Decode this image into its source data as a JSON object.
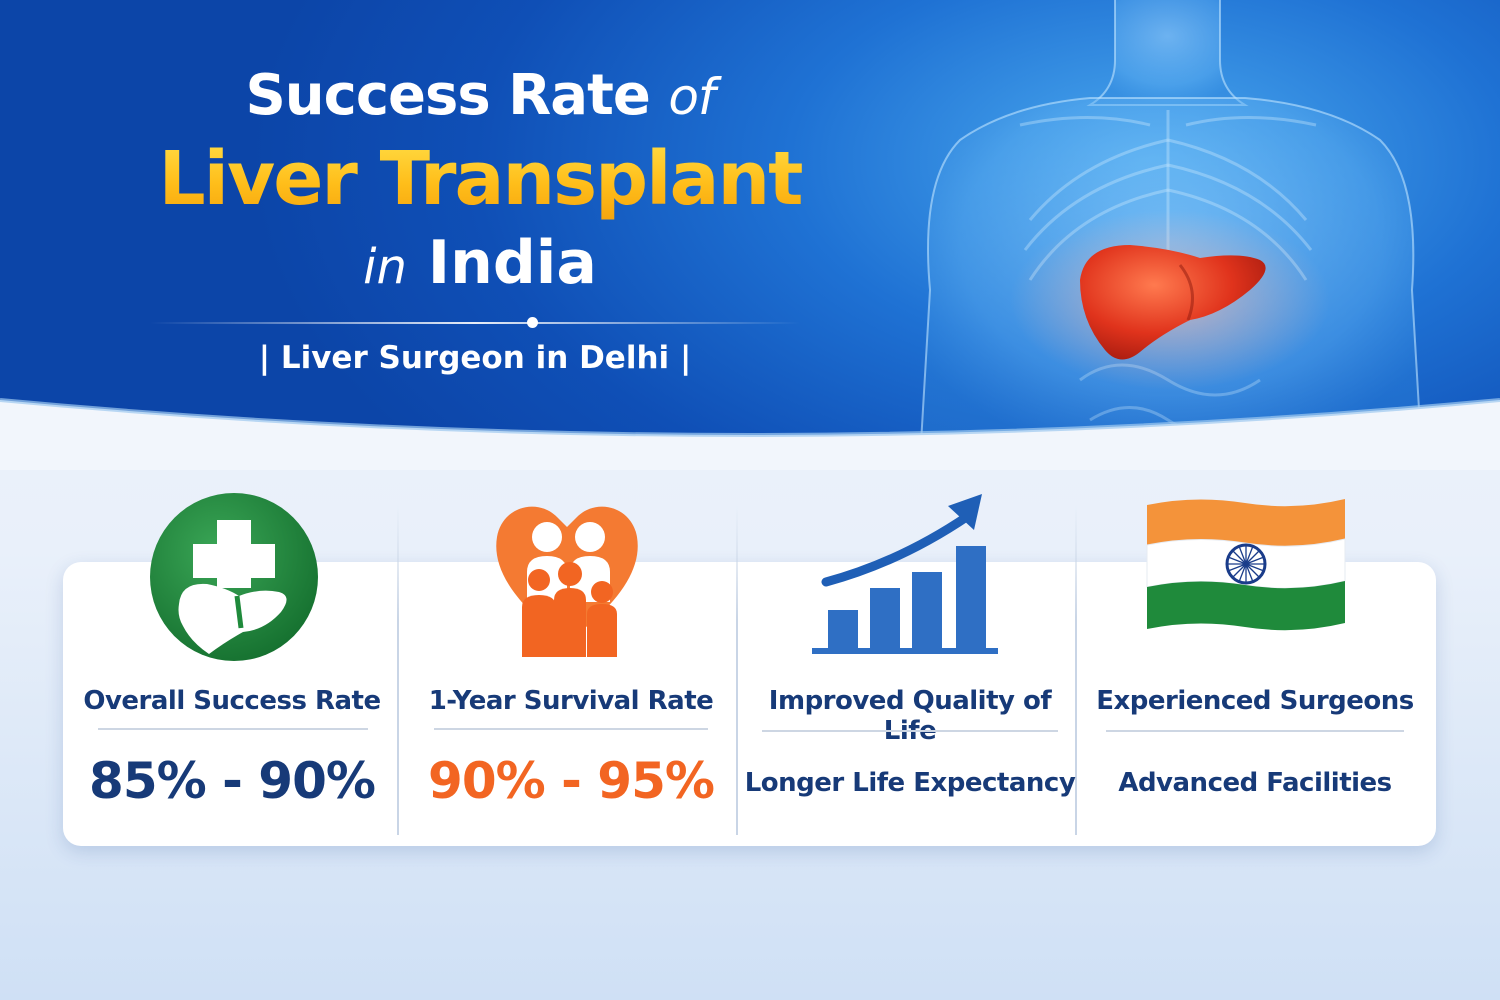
{
  "header": {
    "title_line1": "Success Rate",
    "title_line1_italic": "of",
    "title_line2": "Liver Transplant",
    "title_line3_italic": "in",
    "title_line3": "India",
    "subtitle": "| Liver Surgeon in Delhi |"
  },
  "stats": [
    {
      "label": "Overall Success Rate",
      "value": "85% - 90%",
      "icon": "hospital-cross-liver-icon",
      "value_color": "#173a78"
    },
    {
      "label": "1-Year Survival Rate",
      "value": "90% - 95%",
      "icon": "family-heart-icon",
      "value_color": "#f26522"
    },
    {
      "label": "Improved Quality of Life",
      "value": "Longer Life Expectancy",
      "icon": "growth-chart-icon"
    },
    {
      "label": "Experienced Surgeons",
      "value": "Advanced Facilities",
      "icon": "india-flag-icon"
    }
  ],
  "colors": {
    "navy": "#173a78",
    "orange": "#f26522",
    "green": "#1f8a3b",
    "gold": "#ffc629",
    "blue": "#1f72d4"
  }
}
